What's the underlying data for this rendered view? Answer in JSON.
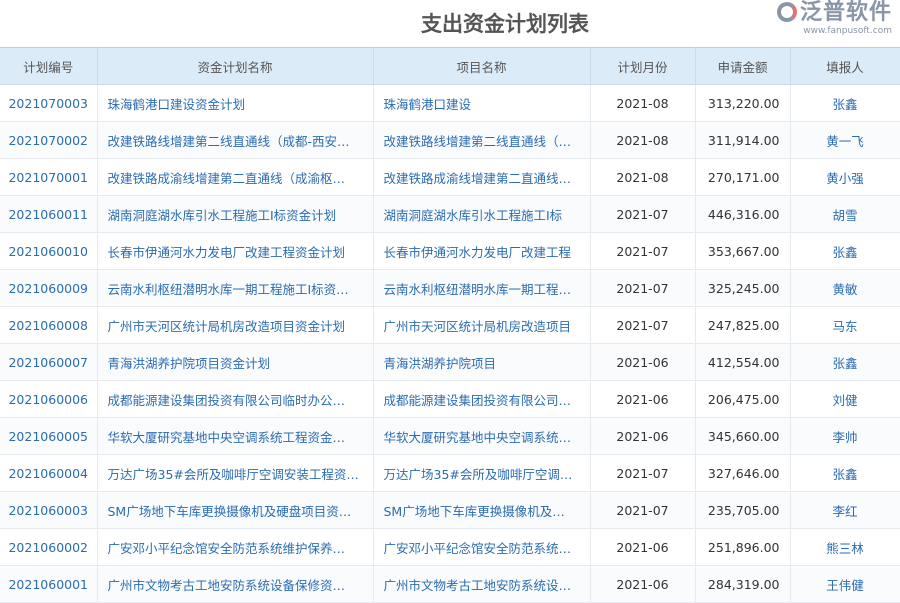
{
  "title": "支出资金计划列表",
  "columns": [
    "计划编号",
    "资金计划名称",
    "项目名称",
    "计划月份",
    "申请金额",
    "填报人"
  ],
  "rows": [
    [
      "2021070003",
      "珠海鹤港口建设资金计划",
      "珠海鹤港口建设",
      "2021-08",
      "313,220.00",
      "张鑫"
    ],
    [
      "2021070002",
      "改建铁路线增建第二线直通线（成都-西安…",
      "改建铁路线增建第二线直通线（…",
      "2021-08",
      "311,914.00",
      "黄一飞"
    ],
    [
      "2021070001",
      "改建铁路成渝线增建第二直通线（成渝枢…",
      "改建铁路成渝线增建第二直通线…",
      "2021-08",
      "270,171.00",
      "黄小强"
    ],
    [
      "2021060011",
      "湖南洞庭湖水库引水工程施工Ⅰ标资金计划",
      "湖南洞庭湖水库引水工程施工Ⅰ标",
      "2021-07",
      "446,316.00",
      "胡雪"
    ],
    [
      "2021060010",
      "长春市伊通河水力发电厂改建工程资金计划",
      "长春市伊通河水力发电厂改建工程",
      "2021-07",
      "353,667.00",
      "张鑫"
    ],
    [
      "2021060009",
      "云南水利枢纽潜明水库一期工程施工Ⅰ标资…",
      "云南水利枢纽潜明水库一期工程…",
      "2021-07",
      "325,245.00",
      "黄敏"
    ],
    [
      "2021060008",
      "广州市天河区统计局机房改造项目资金计划",
      "广州市天河区统计局机房改造项目",
      "2021-07",
      "247,825.00",
      "马东"
    ],
    [
      "2021060007",
      "青海洪湖养护院项目资金计划",
      "青海洪湖养护院项目",
      "2021-06",
      "412,554.00",
      "张鑫"
    ],
    [
      "2021060006",
      "成都能源建设集团投资有限公司临时办公…",
      "成都能源建设集团投资有限公司…",
      "2021-06",
      "206,475.00",
      "刘健"
    ],
    [
      "2021060005",
      "华软大厦研究基地中央空调系统工程资金…",
      "华软大厦研究基地中央空调系统…",
      "2021-06",
      "345,660.00",
      "李帅"
    ],
    [
      "2021060004",
      "万达广场35#会所及咖啡厅空调安装工程资…",
      "万达广场35#会所及咖啡厅空调…",
      "2021-07",
      "327,646.00",
      "张鑫"
    ],
    [
      "2021060003",
      "SM广场地下车库更换摄像机及硬盘项目资…",
      "SM广场地下车库更换摄像机及…",
      "2021-07",
      "235,705.00",
      "李红"
    ],
    [
      "2021060002",
      "广安邓小平纪念馆安全防范系统维护保养…",
      "广安邓小平纪念馆安全防范系统…",
      "2021-06",
      "251,896.00",
      "熊三林"
    ],
    [
      "2021060001",
      "广州市文物考古工地安防系统设备保修资…",
      "广州市文物考古工地安防系统设…",
      "2021-06",
      "284,319.00",
      "王伟健"
    ]
  ],
  "watermark": {
    "brand": "泛普软件",
    "url": "www.fanpusoft.com"
  }
}
